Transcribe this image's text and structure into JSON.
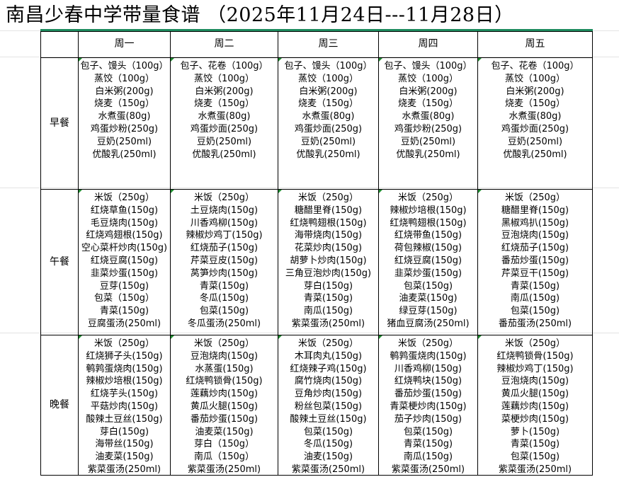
{
  "title": "南昌少春中学带量食谱 （2025年11月24日---11月28日）",
  "days": [
    "周一",
    "周二",
    "周三",
    "周四",
    "周五"
  ],
  "meals": [
    {
      "label": "早餐",
      "cells": [
        [
          "包子、馒头（100g）",
          "蒸饺（100g）",
          "白米粥(200g)",
          "烧麦（150g）",
          "水煮蛋(80g)",
          "鸡蛋炒粉(250g)",
          "豆奶(250ml)",
          "优酸乳(250ml)"
        ],
        [
          "包子、花卷（100g）",
          "蒸饺（100g）",
          "白米粥(200g)",
          "烧麦（150g）",
          "水煮蛋(80g)",
          "鸡蛋炒面(250g)",
          "豆奶(250ml)",
          "优酸乳(250ml)"
        ],
        [
          "包子、馒头（100g）",
          "蒸饺（100g）",
          "白米粥(200g)",
          "烧麦（150g）",
          "水煮蛋(80g)",
          "鸡蛋炒面(250g)",
          "豆奶(250ml)",
          "优酸乳(250ml)"
        ],
        [
          "包子、馒头（100g）",
          "蒸饺（100g）",
          "白米粥(200g)",
          "烧麦（150g）",
          "水煮蛋(80g)",
          "鸡蛋炒粉(250g)",
          "豆奶(250ml)",
          "优酸乳(250ml)"
        ],
        [
          "包子、花卷（100g）",
          "蒸饺（100g）",
          "白米粥(200g)",
          "烧麦（150g）",
          "水煮蛋(80g)",
          "鸡蛋炒面(250g)",
          "豆奶(250ml)",
          "优酸乳(250ml)"
        ]
      ]
    },
    {
      "label": "午餐",
      "cells": [
        [
          "米饭（250g）",
          "红烧草鱼(150g)",
          "毛豆烧肉(150g)",
          "红烧鸡翅根(150g)",
          "空心菜杆炒肉(150g)",
          "红烧豆腐(150g)",
          "韭菜炒蛋(150g)",
          "豆芽(150g)",
          "包菜（150g）",
          "青菜(150g)",
          "豆腐蛋汤(250ml)"
        ],
        [
          "米饭（250g）",
          "土豆烧肉(150g)",
          "川香鸡柳(150g)",
          "辣椒炒鸡丁(150g)",
          "红烧茄子(150g)",
          "芹菜豆皮(150g)",
          "莴笋炒肉(150g)",
          "青菜(150g)",
          "冬瓜(150g)",
          "包菜(150g)",
          "冬瓜蛋汤(250ml)"
        ],
        [
          "米饭（250g）",
          "糖醋里脊(150g)",
          "红烧鸭翅根(150g)",
          "海带烧肉(150g)",
          "花菜炒肉(150g)",
          "胡萝卜炒肉(150g)",
          "三角豆泡炒肉(150g)",
          "芽白(150g)",
          "青菜(150g)",
          "南瓜(150g)",
          "紫菜蛋汤(250ml)"
        ],
        [
          "米饭（250g）",
          "辣椒炒培根(150g)",
          "红烧鸭翅根(150g)",
          "红烧带鱼(150g)",
          "荷包辣椒(150g)",
          "红烧豆腐(150g)",
          "韭菜炒蛋(150g)",
          "包菜(150g)",
          "油麦菜(150g)",
          "绿豆芽(150g)",
          "猪血豆腐汤(250ml)"
        ],
        [
          "米饭（250g）",
          "糖醋里脊(150g)",
          "黑椒鸡扒(150g)",
          "豆泡烧肉(150g)",
          "红烧茄子(150g)",
          "番茄炒蛋(150g)",
          "芹菜豆干(150g)",
          "青菜(150g)",
          "南瓜(150g)",
          "包菜(150g)",
          "番茄蛋汤(250ml)"
        ]
      ]
    },
    {
      "label": "晚餐",
      "cells": [
        [
          "米饭（250g）",
          "红烧狮子头(150g)",
          "鹌鹑蛋烧肉(150g)",
          "辣椒炒培根(150g)",
          "红烧芋头(150g)",
          "平菇炒肉(150g)",
          "酸辣土豆丝(150g)",
          "芽白(150g)",
          "海带丝(150g)",
          "油麦菜(150g)",
          "紫菜蛋汤(250ml)"
        ],
        [
          "米饭（250g）",
          "豆泡烧肉(150g)",
          "水蒸蛋(150g)",
          "红烧鸭锁骨(150g)",
          "莲藕炒肉(150g)",
          "黄瓜火腿(150g)",
          "番茄炒蛋(150g)",
          "油麦菜(150g)",
          "芽白（150g）",
          "南瓜（150g）",
          "紫菜蛋汤(250ml)"
        ],
        [
          "米饭（250g）",
          "木耳肉丸(150g)",
          "红烧辣子鸡(150g)",
          "腐竹烧肉(150g)",
          "豆角炒肉(150g)",
          "粉丝包菜(150g)",
          "酸辣土豆丝(150g)",
          "包菜(150g)",
          "冬瓜(150g)",
          "油麦(150g)",
          "紫菜蛋汤(250ml)"
        ],
        [
          "米饭（250g）",
          "鹌鹑蛋烧肉(150g)",
          "川香鸡柳(150g)",
          "红烧鸭块(150g)",
          "番茄炒蛋(150g)",
          "青菜梗炒肉(150g)",
          "茄子炒肉(150g)",
          "包菜(150g)",
          "青菜(150g)",
          "南瓜(150g)",
          "紫菜蛋汤(250ml)"
        ],
        [
          "米饭（250g）",
          "红烧鸭锁骨(150g)",
          "辣椒炒鸡丁(150g)",
          "豆泡烧肉(150g)",
          "黄瓜火腿(150g)",
          "莲藕炒肉(150g)",
          "菜梗炒肉(150g)",
          "萝卜(150g)",
          "青菜(150g)",
          "包菜(150g)",
          "紫菜蛋汤(250ml)"
        ]
      ]
    }
  ],
  "colors": {
    "selection_border": "#1e8c5f",
    "grid": "#e3e3e3",
    "cell_marker": "#1e8c2f"
  }
}
